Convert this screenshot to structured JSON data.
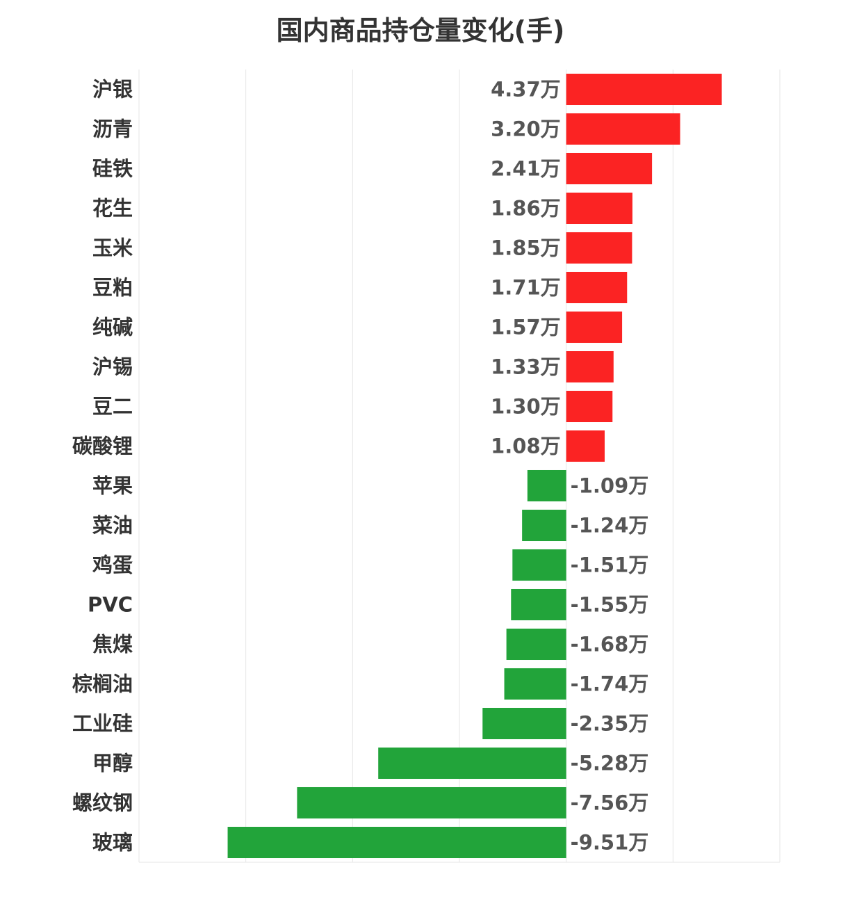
{
  "chart_data": {
    "type": "bar",
    "orientation": "horizontal",
    "title": "国内商品持仓量变化(手)",
    "value_unit_suffix": "万",
    "categories": [
      "沪银",
      "沥青",
      "硅铁",
      "花生",
      "玉米",
      "豆粕",
      "纯碱",
      "沪锡",
      "豆二",
      "碳酸锂",
      "苹果",
      "菜油",
      "鸡蛋",
      "PVC",
      "焦煤",
      "棕榈油",
      "工业硅",
      "甲醇",
      "螺纹钢",
      "玻璃"
    ],
    "values": [
      4.37,
      3.2,
      2.41,
      1.86,
      1.85,
      1.71,
      1.57,
      1.33,
      1.3,
      1.08,
      -1.09,
      -1.24,
      -1.51,
      -1.55,
      -1.68,
      -1.74,
      -2.35,
      -5.28,
      -7.56,
      -9.51
    ],
    "value_labels": [
      "4.37万",
      "3.20万",
      "2.41万",
      "1.86万",
      "1.85万",
      "1.71万",
      "1.57万",
      "1.33万",
      "1.30万",
      "1.08万",
      "-1.09万",
      "-1.24万",
      "-1.51万",
      "-1.55万",
      "-1.68万",
      "-1.74万",
      "-2.35万",
      "-5.28万",
      "-7.56万",
      "-9.51万"
    ],
    "xlim": [
      -12,
      6
    ],
    "grid": true,
    "colors": {
      "positive": "#fb2323",
      "negative": "#22a43a",
      "grid": "#e6e6e6"
    }
  }
}
